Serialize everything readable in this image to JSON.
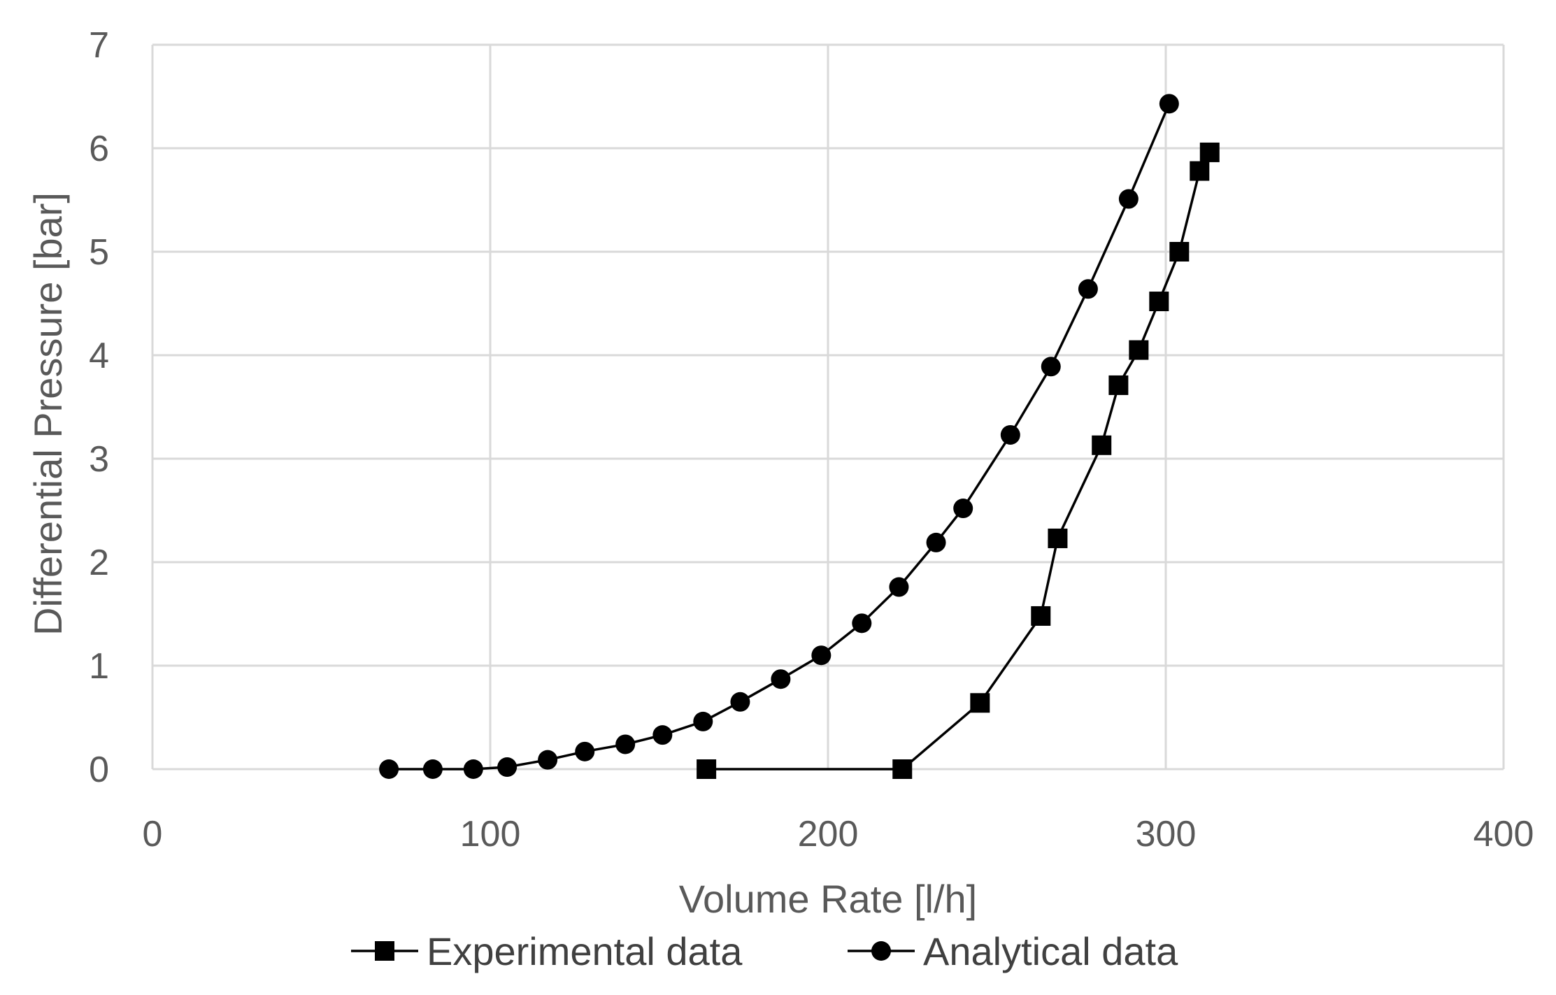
{
  "chart_data": {
    "type": "line",
    "xlabel": "Volume Rate [l/h]",
    "ylabel": "Differential Pressure [bar]",
    "xlim": [
      0,
      400
    ],
    "ylim": [
      0,
      7
    ],
    "xticks": [
      0,
      100,
      200,
      300,
      400
    ],
    "yticks": [
      0,
      1,
      2,
      3,
      4,
      5,
      6,
      7
    ],
    "grid": true,
    "legend_position": "bottom",
    "series": [
      {
        "name": "Experimental data",
        "marker": "square",
        "color": "#000000",
        "x": [
          164,
          222,
          245,
          263,
          268,
          281,
          286,
          292,
          298,
          304,
          310,
          313
        ],
        "y": [
          0.0,
          0.0,
          0.64,
          1.48,
          2.23,
          3.13,
          3.71,
          4.05,
          4.52,
          5.0,
          5.78,
          5.96
        ]
      },
      {
        "name": "Analytical data",
        "marker": "circle",
        "color": "#000000",
        "x": [
          70,
          83,
          95,
          105,
          117,
          128,
          140,
          151,
          163,
          174,
          186,
          198,
          210,
          221,
          232,
          240,
          254,
          266,
          277,
          289,
          301
        ],
        "y": [
          0.0,
          0.0,
          0.0,
          0.02,
          0.09,
          0.17,
          0.24,
          0.33,
          0.46,
          0.65,
          0.87,
          1.1,
          1.41,
          1.76,
          2.19,
          2.52,
          3.23,
          3.89,
          4.64,
          5.51,
          6.43
        ]
      }
    ]
  }
}
